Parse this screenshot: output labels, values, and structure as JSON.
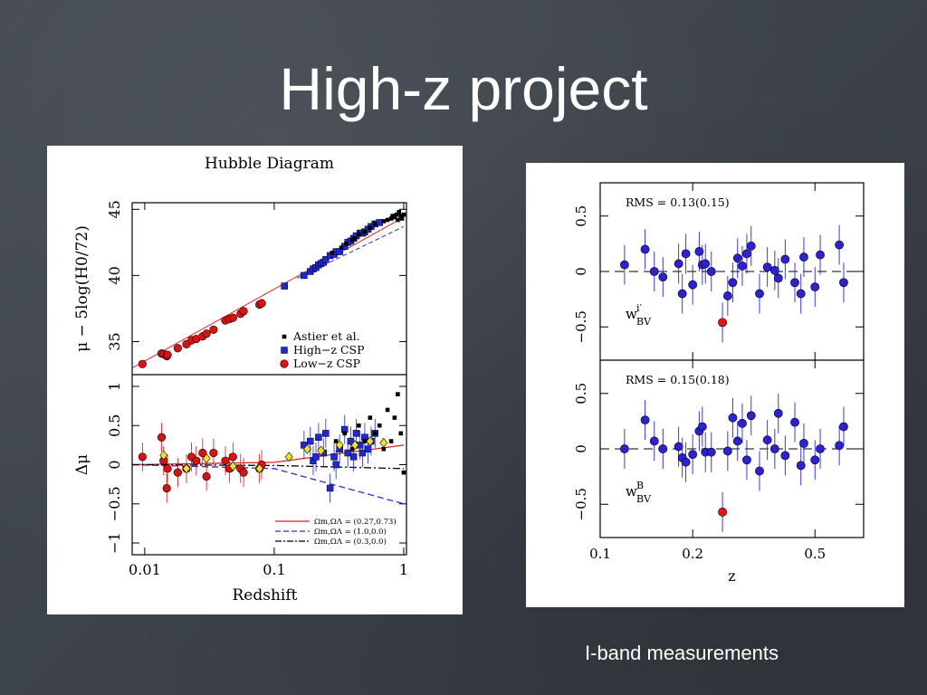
{
  "slide": {
    "title": "High-z project",
    "caption": "I-band measurements"
  },
  "chart_data": [
    {
      "type": "scatter",
      "title": "Hubble Diagram",
      "xlabel": "Redshift",
      "ylabel": "μ − 5log(H0/72)",
      "xscale": "log",
      "xlim": [
        0.008,
        1.05
      ],
      "ylim": [
        32.5,
        45.5
      ],
      "x_ticks": [
        "0.01",
        "0.1",
        "1"
      ],
      "y_ticks": [
        "35",
        "40",
        "45"
      ],
      "legend": {
        "placement": "bottom-right",
        "entries": [
          "Astier et al.",
          "High−z CSP",
          "Low−z CSP"
        ]
      },
      "series": [
        {
          "name": "Low−z CSP",
          "color": "#dd1111",
          "marker": "circle",
          "x": [
            0.0096,
            0.0135,
            0.014,
            0.0148,
            0.015,
            0.018,
            0.021,
            0.023,
            0.025,
            0.028,
            0.03,
            0.034,
            0.042,
            0.045,
            0.048,
            0.055,
            0.058,
            0.077,
            0.08
          ],
          "y": [
            33.3,
            34.1,
            34.05,
            33.9,
            34.0,
            34.5,
            34.8,
            35.1,
            35.2,
            35.4,
            35.6,
            35.9,
            36.6,
            36.7,
            36.8,
            37.1,
            37.3,
            37.8,
            37.9
          ]
        },
        {
          "name": "High−z CSP",
          "color": "#1e28d8",
          "marker": "square",
          "x": [
            0.12,
            0.17,
            0.19,
            0.2,
            0.21,
            0.22,
            0.23,
            0.24,
            0.25,
            0.27,
            0.29,
            0.3,
            0.32,
            0.35,
            0.37,
            0.39,
            0.41,
            0.43,
            0.46,
            0.48,
            0.5,
            0.53,
            0.56,
            0.6,
            0.65
          ],
          "y": [
            39.2,
            40.0,
            40.3,
            40.5,
            40.6,
            40.8,
            40.9,
            41.0,
            41.2,
            41.5,
            41.6,
            41.8,
            41.8,
            42.2,
            42.5,
            42.6,
            42.8,
            43.0,
            43.2,
            43.2,
            43.3,
            43.5,
            43.7,
            43.9,
            44.0
          ]
        },
        {
          "name": "Astier et al.",
          "color": "#000000",
          "marker": "square-small",
          "x": [
            0.28,
            0.33,
            0.36,
            0.4,
            0.42,
            0.45,
            0.5,
            0.55,
            0.6,
            0.7,
            0.75,
            0.8,
            0.82,
            0.85,
            0.88,
            0.9,
            0.92,
            0.95,
            0.97,
            1.0
          ],
          "y": [
            41.7,
            42.1,
            42.4,
            42.7,
            42.8,
            43.1,
            43.3,
            43.6,
            43.9,
            44.1,
            44.2,
            44.3,
            44.5,
            44.4,
            44.6,
            44.2,
            44.8,
            44.5,
            44.3,
            44.6
          ]
        }
      ],
      "model_line": {
        "from": [
          0.008,
          33.0
        ],
        "to": [
          1.0,
          44.4
        ]
      }
    },
    {
      "type": "scatter",
      "xlabel": "Redshift",
      "ylabel": "Δμ",
      "xscale": "log",
      "xlim": [
        0.008,
        1.05
      ],
      "ylim": [
        -1.15,
        1.15
      ],
      "x_ticks": [
        "0.01",
        "0.1",
        "1"
      ],
      "y_ticks": [
        "−1",
        "−0.5",
        "0",
        "0.5",
        "1"
      ],
      "legend": {
        "placement": "bottom-right",
        "entries": [
          "Ωm,ΩΛ = (0.27,0.73)",
          "Ωm,ΩΛ = (1.0,0.0)",
          "Ωm,ΩΛ = (0.3,0.0)"
        ]
      },
      "series": [
        {
          "name": "Low−z CSP",
          "color": "#dd1111",
          "marker": "circle",
          "x": [
            0.0096,
            0.0135,
            0.014,
            0.0148,
            0.015,
            0.018,
            0.021,
            0.023,
            0.025,
            0.028,
            0.03,
            0.034,
            0.042,
            0.045,
            0.048,
            0.055,
            0.058,
            0.077,
            0.08
          ],
          "y": [
            0.1,
            0.35,
            0.05,
            -0.3,
            -0.05,
            -0.1,
            -0.05,
            0.1,
            0.05,
            0.15,
            -0.15,
            0.15,
            0.05,
            -0.05,
            0.1,
            -0.05,
            -0.1,
            -0.05,
            0.0
          ]
        },
        {
          "name": "High−z CSP",
          "color": "#1e28d8",
          "marker": "square",
          "x": [
            0.17,
            0.19,
            0.2,
            0.21,
            0.22,
            0.24,
            0.25,
            0.27,
            0.29,
            0.3,
            0.32,
            0.35,
            0.37,
            0.39,
            0.41,
            0.43,
            0.46,
            0.48,
            0.5,
            0.53,
            0.56,
            0.6
          ],
          "y": [
            0.25,
            0.3,
            0.05,
            0.1,
            0.35,
            0.15,
            0.4,
            -0.3,
            0.1,
            0.0,
            0.2,
            0.45,
            0.15,
            0.3,
            0.1,
            0.4,
            0.25,
            0.15,
            0.35,
            0.2,
            0.3,
            0.4
          ]
        },
        {
          "name": "Astier et al.",
          "color": "#000000",
          "marker": "square-small",
          "x": [
            0.3,
            0.35,
            0.4,
            0.45,
            0.5,
            0.55,
            0.6,
            0.65,
            0.7,
            0.75,
            0.8,
            0.85,
            0.9,
            0.95,
            1.0
          ],
          "y": [
            0.3,
            0.4,
            0.2,
            0.5,
            0.3,
            0.6,
            0.4,
            0.5,
            0.2,
            0.7,
            0.3,
            0.6,
            0.9,
            0.4,
            -0.1
          ]
        },
        {
          "name": "binned",
          "color": "#f2e21a",
          "marker": "diamond",
          "x": [
            0.014,
            0.021,
            0.03,
            0.048,
            0.077,
            0.13,
            0.18,
            0.23,
            0.32,
            0.42,
            0.55,
            0.7
          ],
          "y": [
            0.12,
            -0.05,
            0.08,
            -0.02,
            -0.05,
            0.1,
            0.2,
            0.18,
            0.25,
            0.25,
            0.3,
            0.28
          ]
        }
      ]
    },
    {
      "type": "scatter",
      "xlabel": "z",
      "ylabel": "",
      "annotation": "RMS = 0.13(0.15)",
      "band_label": "w",
      "band_sup": "i′",
      "band_sub": "BV",
      "xscale": "log",
      "xlim": [
        0.1,
        0.72
      ],
      "ylim": [
        -0.8,
        0.8
      ],
      "x_ticks": [
        "0.1",
        "0.2",
        "0.5"
      ],
      "y_ticks": [
        "0.5",
        "0",
        "−0.5"
      ],
      "series": [
        {
          "name": "points",
          "color": "#2b22d8",
          "marker": "circle",
          "x": [
            0.12,
            0.14,
            0.15,
            0.16,
            0.18,
            0.185,
            0.19,
            0.2,
            0.21,
            0.215,
            0.22,
            0.23,
            0.26,
            0.27,
            0.28,
            0.29,
            0.3,
            0.31,
            0.33,
            0.35,
            0.37,
            0.38,
            0.4,
            0.43,
            0.45,
            0.46,
            0.5,
            0.52,
            0.6,
            0.62
          ],
          "y": [
            0.06,
            0.2,
            0.0,
            -0.05,
            0.07,
            -0.2,
            0.16,
            -0.12,
            0.18,
            0.06,
            0.07,
            0.0,
            -0.22,
            -0.1,
            0.12,
            0.05,
            0.16,
            0.23,
            -0.2,
            0.04,
            0.01,
            -0.06,
            0.11,
            -0.1,
            -0.2,
            0.13,
            -0.14,
            0.15,
            0.24,
            -0.1
          ]
        },
        {
          "name": "outlier",
          "color": "#ee1111",
          "marker": "circle",
          "x": [
            0.25
          ],
          "y": [
            -0.46
          ]
        }
      ]
    },
    {
      "type": "scatter",
      "xlabel": "z",
      "ylabel": "",
      "annotation": "RMS = 0.15(0.18)",
      "band_label": "w",
      "band_sup": "B",
      "band_sub": "BV",
      "xscale": "log",
      "xlim": [
        0.1,
        0.72
      ],
      "ylim": [
        -0.8,
        0.8
      ],
      "x_ticks": [
        "0.1",
        "0.2",
        "0.5"
      ],
      "y_ticks": [
        "0.5",
        "0",
        "−0.5"
      ],
      "series": [
        {
          "name": "points",
          "color": "#2b22d8",
          "marker": "circle",
          "x": [
            0.12,
            0.14,
            0.15,
            0.16,
            0.18,
            0.185,
            0.19,
            0.2,
            0.21,
            0.215,
            0.22,
            0.23,
            0.26,
            0.27,
            0.28,
            0.29,
            0.3,
            0.31,
            0.33,
            0.35,
            0.37,
            0.38,
            0.4,
            0.43,
            0.45,
            0.46,
            0.5,
            0.52,
            0.6,
            0.62
          ],
          "y": [
            0.0,
            0.26,
            0.07,
            0.0,
            0.02,
            -0.08,
            -0.12,
            -0.05,
            0.16,
            0.2,
            -0.03,
            -0.03,
            -0.02,
            0.28,
            0.07,
            0.23,
            -0.1,
            0.3,
            -0.2,
            0.08,
            0.0,
            0.32,
            -0.06,
            0.24,
            -0.15,
            0.05,
            -0.1,
            0.0,
            0.03,
            0.2
          ]
        },
        {
          "name": "outlier",
          "color": "#ee1111",
          "marker": "circle",
          "x": [
            0.25
          ],
          "y": [
            -0.57
          ]
        }
      ]
    }
  ]
}
